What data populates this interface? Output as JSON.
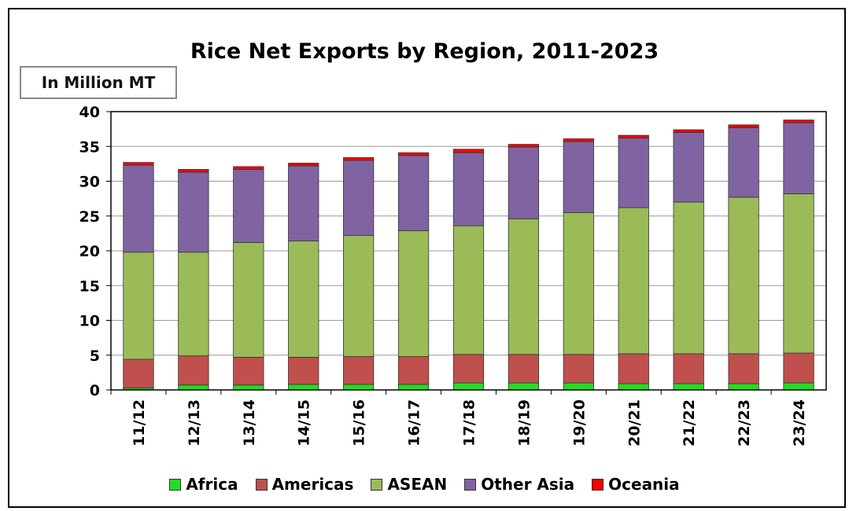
{
  "chart_data": {
    "type": "bar",
    "stacked": true,
    "title": "Rice Net Exports by Region, 2011-2023",
    "unit_label": "In Million MT",
    "ylim": [
      0,
      40
    ],
    "yticks": [
      0,
      5,
      10,
      15,
      20,
      25,
      30,
      35,
      40
    ],
    "grid": true,
    "legend_position": "bottom",
    "categories": [
      "11/12",
      "12/13",
      "13/14",
      "14/15",
      "15/16",
      "16/17",
      "17/18",
      "18/19",
      "19/20",
      "20/21",
      "21/22",
      "22/23",
      "23/24"
    ],
    "series": [
      {
        "name": "Africa",
        "color": "#22dd22",
        "values": [
          0.3,
          0.7,
          0.7,
          0.8,
          0.8,
          0.8,
          1.0,
          1.0,
          1.0,
          0.9,
          0.9,
          0.9,
          1.0
        ]
      },
      {
        "name": "Americas",
        "color": "#c0504d",
        "values": [
          4.1,
          4.2,
          4.0,
          3.9,
          4.0,
          4.0,
          4.1,
          4.1,
          4.1,
          4.3,
          4.3,
          4.3,
          4.3
        ]
      },
      {
        "name": "ASEAN",
        "color": "#9bbb59",
        "values": [
          15.4,
          14.9,
          16.5,
          16.7,
          17.4,
          18.1,
          18.5,
          19.5,
          20.4,
          21.0,
          21.8,
          22.5,
          22.9
        ]
      },
      {
        "name": "Other Asia",
        "color": "#8064a2",
        "values": [
          12.5,
          11.5,
          10.5,
          10.8,
          10.8,
          10.8,
          10.5,
          10.3,
          10.2,
          10.0,
          10.0,
          10.0,
          10.2
        ]
      },
      {
        "name": "Oceania",
        "color": "#ff0000",
        "values": [
          0.4,
          0.4,
          0.4,
          0.4,
          0.4,
          0.4,
          0.5,
          0.4,
          0.4,
          0.4,
          0.4,
          0.4,
          0.4
        ]
      }
    ]
  }
}
